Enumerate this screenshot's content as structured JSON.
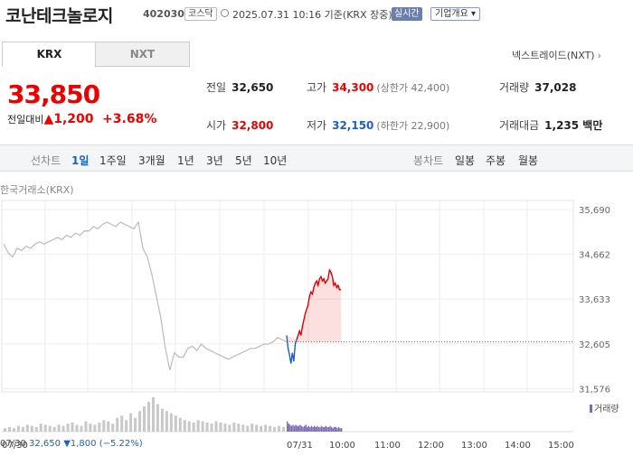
{
  "header": {
    "name": "코난테크놀로지",
    "code": "402030",
    "market_badge": "코스닥",
    "time": "2025.07.31 10:16 기준(KRX 장중)",
    "realtime": "실시간",
    "corp_info": "기업개요 ▾"
  },
  "tabs": [
    "KRX",
    "NXT"
  ],
  "next_link": "넥스트레이드(NXT)",
  "price": {
    "current": "33,850",
    "change_label": "전일대비",
    "change": "▲1,200",
    "change_pct": "+3.68%"
  },
  "stats": {
    "prev": {
      "label": "전일",
      "value": "32,650"
    },
    "high": {
      "label": "고가",
      "value": "34,300",
      "sub": "(상한가 42,400)"
    },
    "volume": {
      "label": "거래량",
      "value": "37,028"
    },
    "open": {
      "label": "시가",
      "value": "32,800"
    },
    "low": {
      "label": "저가",
      "value": "32,150",
      "sub": "(하한가 22,900)"
    },
    "amount": {
      "label": "거래대금",
      "value": "1,235 백만"
    }
  },
  "chart_toolbar": {
    "line_label": "선차트",
    "periods": [
      "1일",
      "1주일",
      "3개월",
      "1년",
      "3년",
      "5년",
      "10년"
    ],
    "selected": "1일",
    "candle_label": "봉차트",
    "candle_periods": [
      "일봉",
      "주봉",
      "월봉"
    ]
  },
  "chart_source": "한국거래소(KRX)",
  "volume_legend": "거래량",
  "footer": {
    "prev_date": "07/30",
    "prev_close": "32,650",
    "prev_change": "▼1,800 (−5.22%)"
  },
  "colors": {
    "up": "#e00000",
    "down": "#1f5fc7",
    "prev_line": "#bbbbbb"
  },
  "chart_data": {
    "type": "line",
    "title": "",
    "ylabel": "",
    "xlabel": "",
    "y_ticks": [
      35690,
      34662,
      33633,
      32605,
      31576
    ],
    "y_tick_labels": [
      "35,690",
      "34,662",
      "33,633",
      "32,605",
      "31,576"
    ],
    "ylim": [
      31500,
      35900
    ],
    "x_tick_labels": [
      "07/30",
      "07/31",
      "10:00",
      "11:00",
      "12:00",
      "13:00",
      "14:00",
      "15:00"
    ],
    "reference_line": 32650,
    "grid": true,
    "series": [
      {
        "session": "07/30",
        "x": [
          0,
          1,
          2,
          3,
          4,
          5,
          6,
          7,
          8,
          9,
          10,
          11,
          12,
          13,
          14,
          15,
          16,
          17,
          18,
          19,
          20,
          21,
          22,
          23,
          24,
          25,
          26,
          27,
          28,
          29,
          30,
          31,
          32,
          33,
          34,
          35,
          36,
          37,
          38,
          39,
          40,
          41,
          42,
          43,
          44,
          45,
          46,
          47,
          48,
          49,
          50,
          51,
          52,
          53,
          54,
          55,
          56,
          57,
          58,
          59,
          60,
          61,
          62,
          63
        ],
        "values": [
          34900,
          34700,
          34600,
          34800,
          34750,
          34850,
          34800,
          34900,
          34950,
          34900,
          34950,
          35000,
          35050,
          35000,
          35100,
          35050,
          35150,
          35100,
          35200,
          35200,
          35300,
          35250,
          35350,
          35400,
          35350,
          35300,
          35400,
          35350,
          35300,
          35250,
          35400,
          34800,
          34600,
          34200,
          33700,
          33200,
          32500,
          32000,
          32400,
          32300,
          32300,
          32500,
          32550,
          32450,
          32600,
          32500,
          32450,
          32400,
          32350,
          32300,
          32250,
          32300,
          32350,
          32400,
          32450,
          32500,
          32500,
          32550,
          32600,
          32600,
          32650,
          32750,
          32700,
          32650
        ]
      },
      {
        "session": "07/31",
        "x": [
          0,
          1,
          2,
          3,
          4,
          5,
          6,
          7,
          8,
          9,
          10,
          11,
          12,
          13,
          14,
          15,
          16,
          17,
          18,
          19,
          20,
          21,
          22,
          23,
          24,
          25,
          26,
          27,
          28,
          29,
          30,
          31,
          32,
          33,
          34,
          35,
          36,
          37,
          38
        ],
        "values": [
          32800,
          32500,
          32350,
          32150,
          32400,
          32200,
          32600,
          32700,
          32800,
          32900,
          32800,
          33000,
          33150,
          33300,
          33400,
          33500,
          33700,
          33800,
          33750,
          33900,
          34000,
          34050,
          33950,
          34100,
          34150,
          34050,
          34100,
          34000,
          34050,
          34100,
          34300,
          34250,
          34150,
          33950,
          34000,
          33900,
          33950,
          33850,
          33850
        ]
      }
    ],
    "volume": {
      "prev": [
        3,
        4,
        3,
        5,
        4,
        6,
        5,
        4,
        7,
        6,
        5,
        4,
        6,
        5,
        7,
        8,
        6,
        5,
        9,
        7,
        6,
        8,
        10,
        9,
        7,
        12,
        14,
        10,
        16,
        12,
        18,
        22,
        26,
        30,
        24,
        20,
        18,
        16,
        14,
        12,
        10,
        9,
        8,
        10,
        9,
        8,
        7,
        9,
        8,
        7,
        6,
        8,
        7,
        6,
        5,
        7,
        6,
        5,
        6,
        5,
        4,
        5,
        4,
        5
      ],
      "today": [
        9,
        7,
        6,
        5,
        6,
        5,
        6,
        5,
        5,
        6,
        5,
        4,
        5,
        6,
        4,
        5,
        4,
        5,
        4,
        5,
        4,
        5,
        4,
        4,
        5,
        4,
        4,
        5,
        4,
        4,
        5,
        4,
        3,
        4,
        4,
        3,
        4,
        3,
        3
      ]
    }
  }
}
